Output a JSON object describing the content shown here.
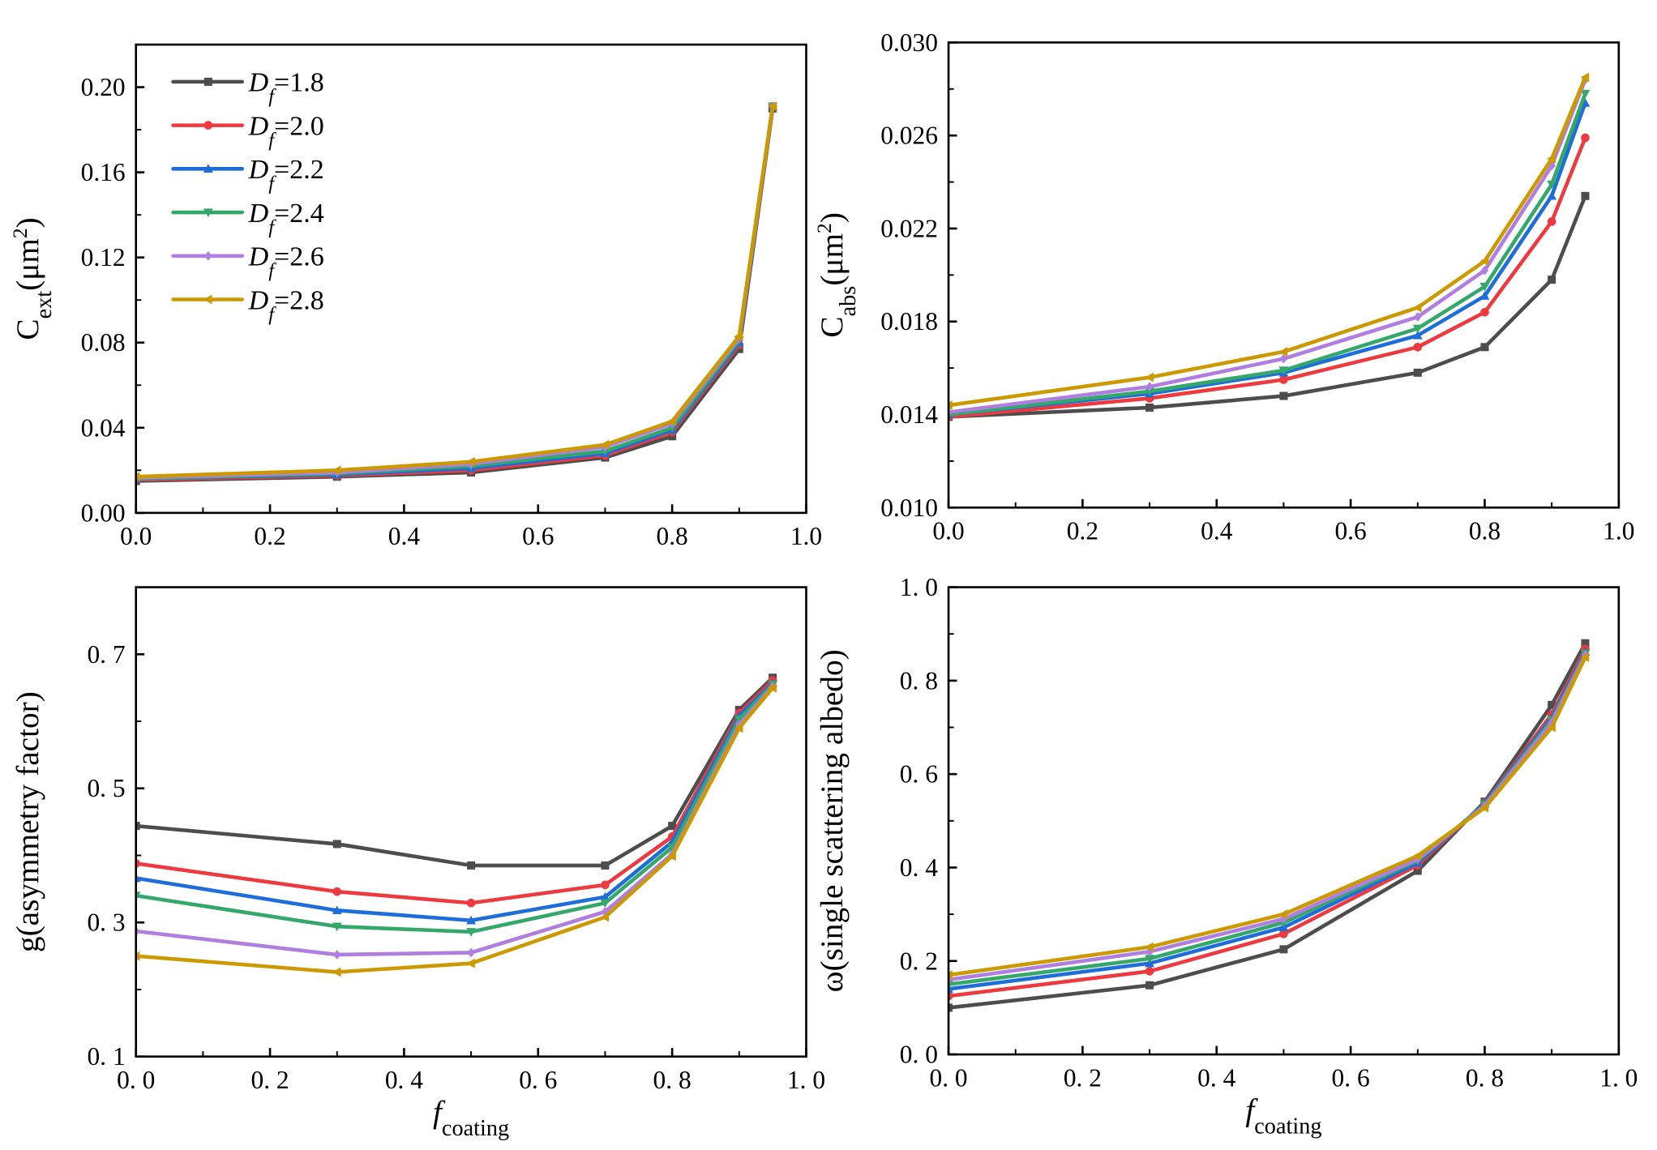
{
  "chart_data": {
    "type": "line",
    "x": [
      0.0,
      0.3,
      0.5,
      0.7,
      0.8,
      0.9,
      0.95
    ],
    "legend": {
      "placement": "top-left of first panel",
      "entries": [
        {
          "symbol": "D",
          "sub": "f",
          "text": "=1.8"
        },
        {
          "symbol": "D",
          "sub": "f",
          "text": "=2.0"
        },
        {
          "symbol": "D",
          "sub": "f",
          "text": "=2.2"
        },
        {
          "symbol": "D",
          "sub": "f",
          "text": "=2.4"
        },
        {
          "symbol": "D",
          "sub": "f",
          "text": "=2.6"
        },
        {
          "symbol": "D",
          "sub": "f",
          "text": "=2.8"
        }
      ]
    },
    "series_style": [
      {
        "color": "#4d4d4d",
        "marker": "square"
      },
      {
        "color": "#ee3a3e",
        "marker": "circle"
      },
      {
        "color": "#1d6ddb",
        "marker": "triangle-up"
      },
      {
        "color": "#33a86a",
        "marker": "triangle-down"
      },
      {
        "color": "#b07de0",
        "marker": "diamond"
      },
      {
        "color": "#cc9900",
        "marker": "triangle-left"
      }
    ],
    "panels": [
      {
        "ylabel": [
          {
            "t": "C"
          },
          {
            "t": "ext",
            "sub": true
          },
          {
            "t": "(μm"
          },
          {
            "t": "2",
            "sup": true
          },
          {
            "t": ")"
          }
        ],
        "xlabel": null,
        "xlim": [
          0,
          1.0
        ],
        "ylim": [
          0,
          0.22
        ],
        "xticks": [
          "0.0",
          "0.2",
          "0.4",
          "0.6",
          "0.8",
          "1.0"
        ],
        "yticks": [
          {
            "v": 0,
            "l": "0.00"
          },
          {
            "v": 0.04,
            "l": "0.04"
          },
          {
            "v": 0.08,
            "l": "0.08"
          },
          {
            "v": 0.12,
            "l": "0.12"
          },
          {
            "v": 0.16,
            "l": "0.16"
          },
          {
            "v": 0.2,
            "l": "0.20"
          }
        ],
        "yminor": 0.02,
        "series": [
          {
            "name": "Df=1.8",
            "values": [
              0.015,
              0.017,
              0.019,
              0.026,
              0.036,
              0.077,
              0.19
            ]
          },
          {
            "name": "Df=2.0",
            "values": [
              0.0155,
              0.0175,
              0.02,
              0.027,
              0.038,
              0.079,
              0.191
            ]
          },
          {
            "name": "Df=2.2",
            "values": [
              0.016,
              0.018,
              0.021,
              0.028,
              0.039,
              0.08,
              0.191
            ]
          },
          {
            "name": "Df=2.4",
            "values": [
              0.016,
              0.0185,
              0.022,
              0.029,
              0.04,
              0.081,
              0.191
            ]
          },
          {
            "name": "Df=2.6",
            "values": [
              0.0165,
              0.019,
              0.023,
              0.031,
              0.042,
              0.082,
              0.191
            ]
          },
          {
            "name": "Df=2.8",
            "values": [
              0.017,
              0.02,
              0.024,
              0.032,
              0.043,
              0.083,
              0.191
            ]
          }
        ]
      },
      {
        "ylabel": [
          {
            "t": "C"
          },
          {
            "t": "abs",
            "sub": true
          },
          {
            "t": "(μm"
          },
          {
            "t": "2",
            "sup": true
          },
          {
            "t": ")"
          }
        ],
        "xlabel": null,
        "xlim": [
          0,
          1.0
        ],
        "ylim": [
          0.01,
          0.03
        ],
        "xticks": [
          "0.0",
          "0.2",
          "0.4",
          "0.6",
          "0.8",
          "1.0"
        ],
        "yticks": [
          {
            "v": 0.01,
            "l": "0.010"
          },
          {
            "v": 0.014,
            "l": "0.014"
          },
          {
            "v": 0.018,
            "l": "0.018"
          },
          {
            "v": 0.022,
            "l": "0.022"
          },
          {
            "v": 0.026,
            "l": "0.026"
          },
          {
            "v": 0.03,
            "l": "0.030"
          }
        ],
        "yminor": 0.002,
        "series": [
          {
            "name": "Df=1.8",
            "values": [
              0.0139,
              0.0143,
              0.0148,
              0.0158,
              0.0169,
              0.0198,
              0.0234
            ]
          },
          {
            "name": "Df=2.0",
            "values": [
              0.0139,
              0.0147,
              0.0155,
              0.0169,
              0.0184,
              0.0223,
              0.0259
            ]
          },
          {
            "name": "Df=2.2",
            "values": [
              0.014,
              0.0149,
              0.0158,
              0.0174,
              0.0191,
              0.0234,
              0.0274
            ]
          },
          {
            "name": "Df=2.4",
            "values": [
              0.014,
              0.015,
              0.0159,
              0.0177,
              0.0195,
              0.0239,
              0.0278
            ]
          },
          {
            "name": "Df=2.6",
            "values": [
              0.0141,
              0.0152,
              0.0164,
              0.0182,
              0.0202,
              0.0247,
              0.0284
            ]
          },
          {
            "name": "Df=2.8",
            "values": [
              0.0144,
              0.0156,
              0.0167,
              0.0186,
              0.0206,
              0.025,
              0.0285
            ]
          }
        ]
      },
      {
        "ylabel": [
          {
            "t": "g(asymmetry factor)"
          }
        ],
        "xlabel": [
          {
            "t": "f",
            "italic": true
          },
          {
            "t": "coating",
            "sub": true
          }
        ],
        "xlim": [
          0,
          1.0
        ],
        "ylim": [
          0.1,
          0.8
        ],
        "xticks": [
          "0. 0",
          "0. 2",
          "0. 4",
          "0. 6",
          "0. 8",
          "1. 0"
        ],
        "yticks": [
          {
            "v": 0.1,
            "l": "0. 1"
          },
          {
            "v": 0.3,
            "l": "0. 3"
          },
          {
            "v": 0.5,
            "l": "0. 5"
          },
          {
            "v": 0.7,
            "l": "0. 7"
          }
        ],
        "yminor": 0.1,
        "series": [
          {
            "name": "Df=1.8",
            "values": [
              0.444,
              0.417,
              0.385,
              0.385,
              0.444,
              0.617,
              0.665
            ]
          },
          {
            "name": "Df=2.0",
            "values": [
              0.388,
              0.346,
              0.329,
              0.356,
              0.428,
              0.612,
              0.661
            ]
          },
          {
            "name": "Df=2.2",
            "values": [
              0.366,
              0.318,
              0.303,
              0.338,
              0.42,
              0.608,
              0.657
            ]
          },
          {
            "name": "Df=2.4",
            "values": [
              0.34,
              0.294,
              0.286,
              0.329,
              0.412,
              0.603,
              0.655
            ]
          },
          {
            "name": "Df=2.6",
            "values": [
              0.287,
              0.252,
              0.255,
              0.316,
              0.402,
              0.595,
              0.652
            ]
          },
          {
            "name": "Df=2.8",
            "values": [
              0.25,
              0.226,
              0.239,
              0.308,
              0.399,
              0.59,
              0.65
            ]
          }
        ]
      },
      {
        "ylabel": [
          {
            "t": "ω(single scattering albedo)"
          }
        ],
        "xlabel": [
          {
            "t": "f",
            "italic": true
          },
          {
            "t": "coating",
            "sub": true
          }
        ],
        "xlim": [
          0,
          1.0
        ],
        "ylim": [
          0,
          1.0
        ],
        "xticks": [
          "0. 0",
          "0. 2",
          "0. 4",
          "0. 6",
          "0. 8",
          "1. 0"
        ],
        "yticks": [
          {
            "v": 0,
            "l": "0. 0"
          },
          {
            "v": 0.2,
            "l": "0. 2"
          },
          {
            "v": 0.4,
            "l": "0. 4"
          },
          {
            "v": 0.6,
            "l": "0. 6"
          },
          {
            "v": 0.8,
            "l": "0. 8"
          },
          {
            "v": 1.0,
            "l": "1. 0"
          }
        ],
        "yminor": 0.1,
        "series": [
          {
            "name": "Df=1.8",
            "values": [
              0.1,
              0.148,
              0.225,
              0.393,
              0.541,
              0.748,
              0.88
            ]
          },
          {
            "name": "Df=2.0",
            "values": [
              0.125,
              0.178,
              0.258,
              0.405,
              0.538,
              0.728,
              0.868
            ]
          },
          {
            "name": "Df=2.2",
            "values": [
              0.14,
              0.195,
              0.272,
              0.41,
              0.537,
              0.72,
              0.862
            ]
          },
          {
            "name": "Df=2.4",
            "values": [
              0.15,
              0.205,
              0.282,
              0.415,
              0.535,
              0.715,
              0.858
            ]
          },
          {
            "name": "Df=2.6",
            "values": [
              0.16,
              0.22,
              0.29,
              0.418,
              0.532,
              0.71,
              0.855
            ]
          },
          {
            "name": "Df=2.8",
            "values": [
              0.17,
              0.23,
              0.3,
              0.425,
              0.528,
              0.7,
              0.85
            ]
          }
        ]
      }
    ]
  }
}
